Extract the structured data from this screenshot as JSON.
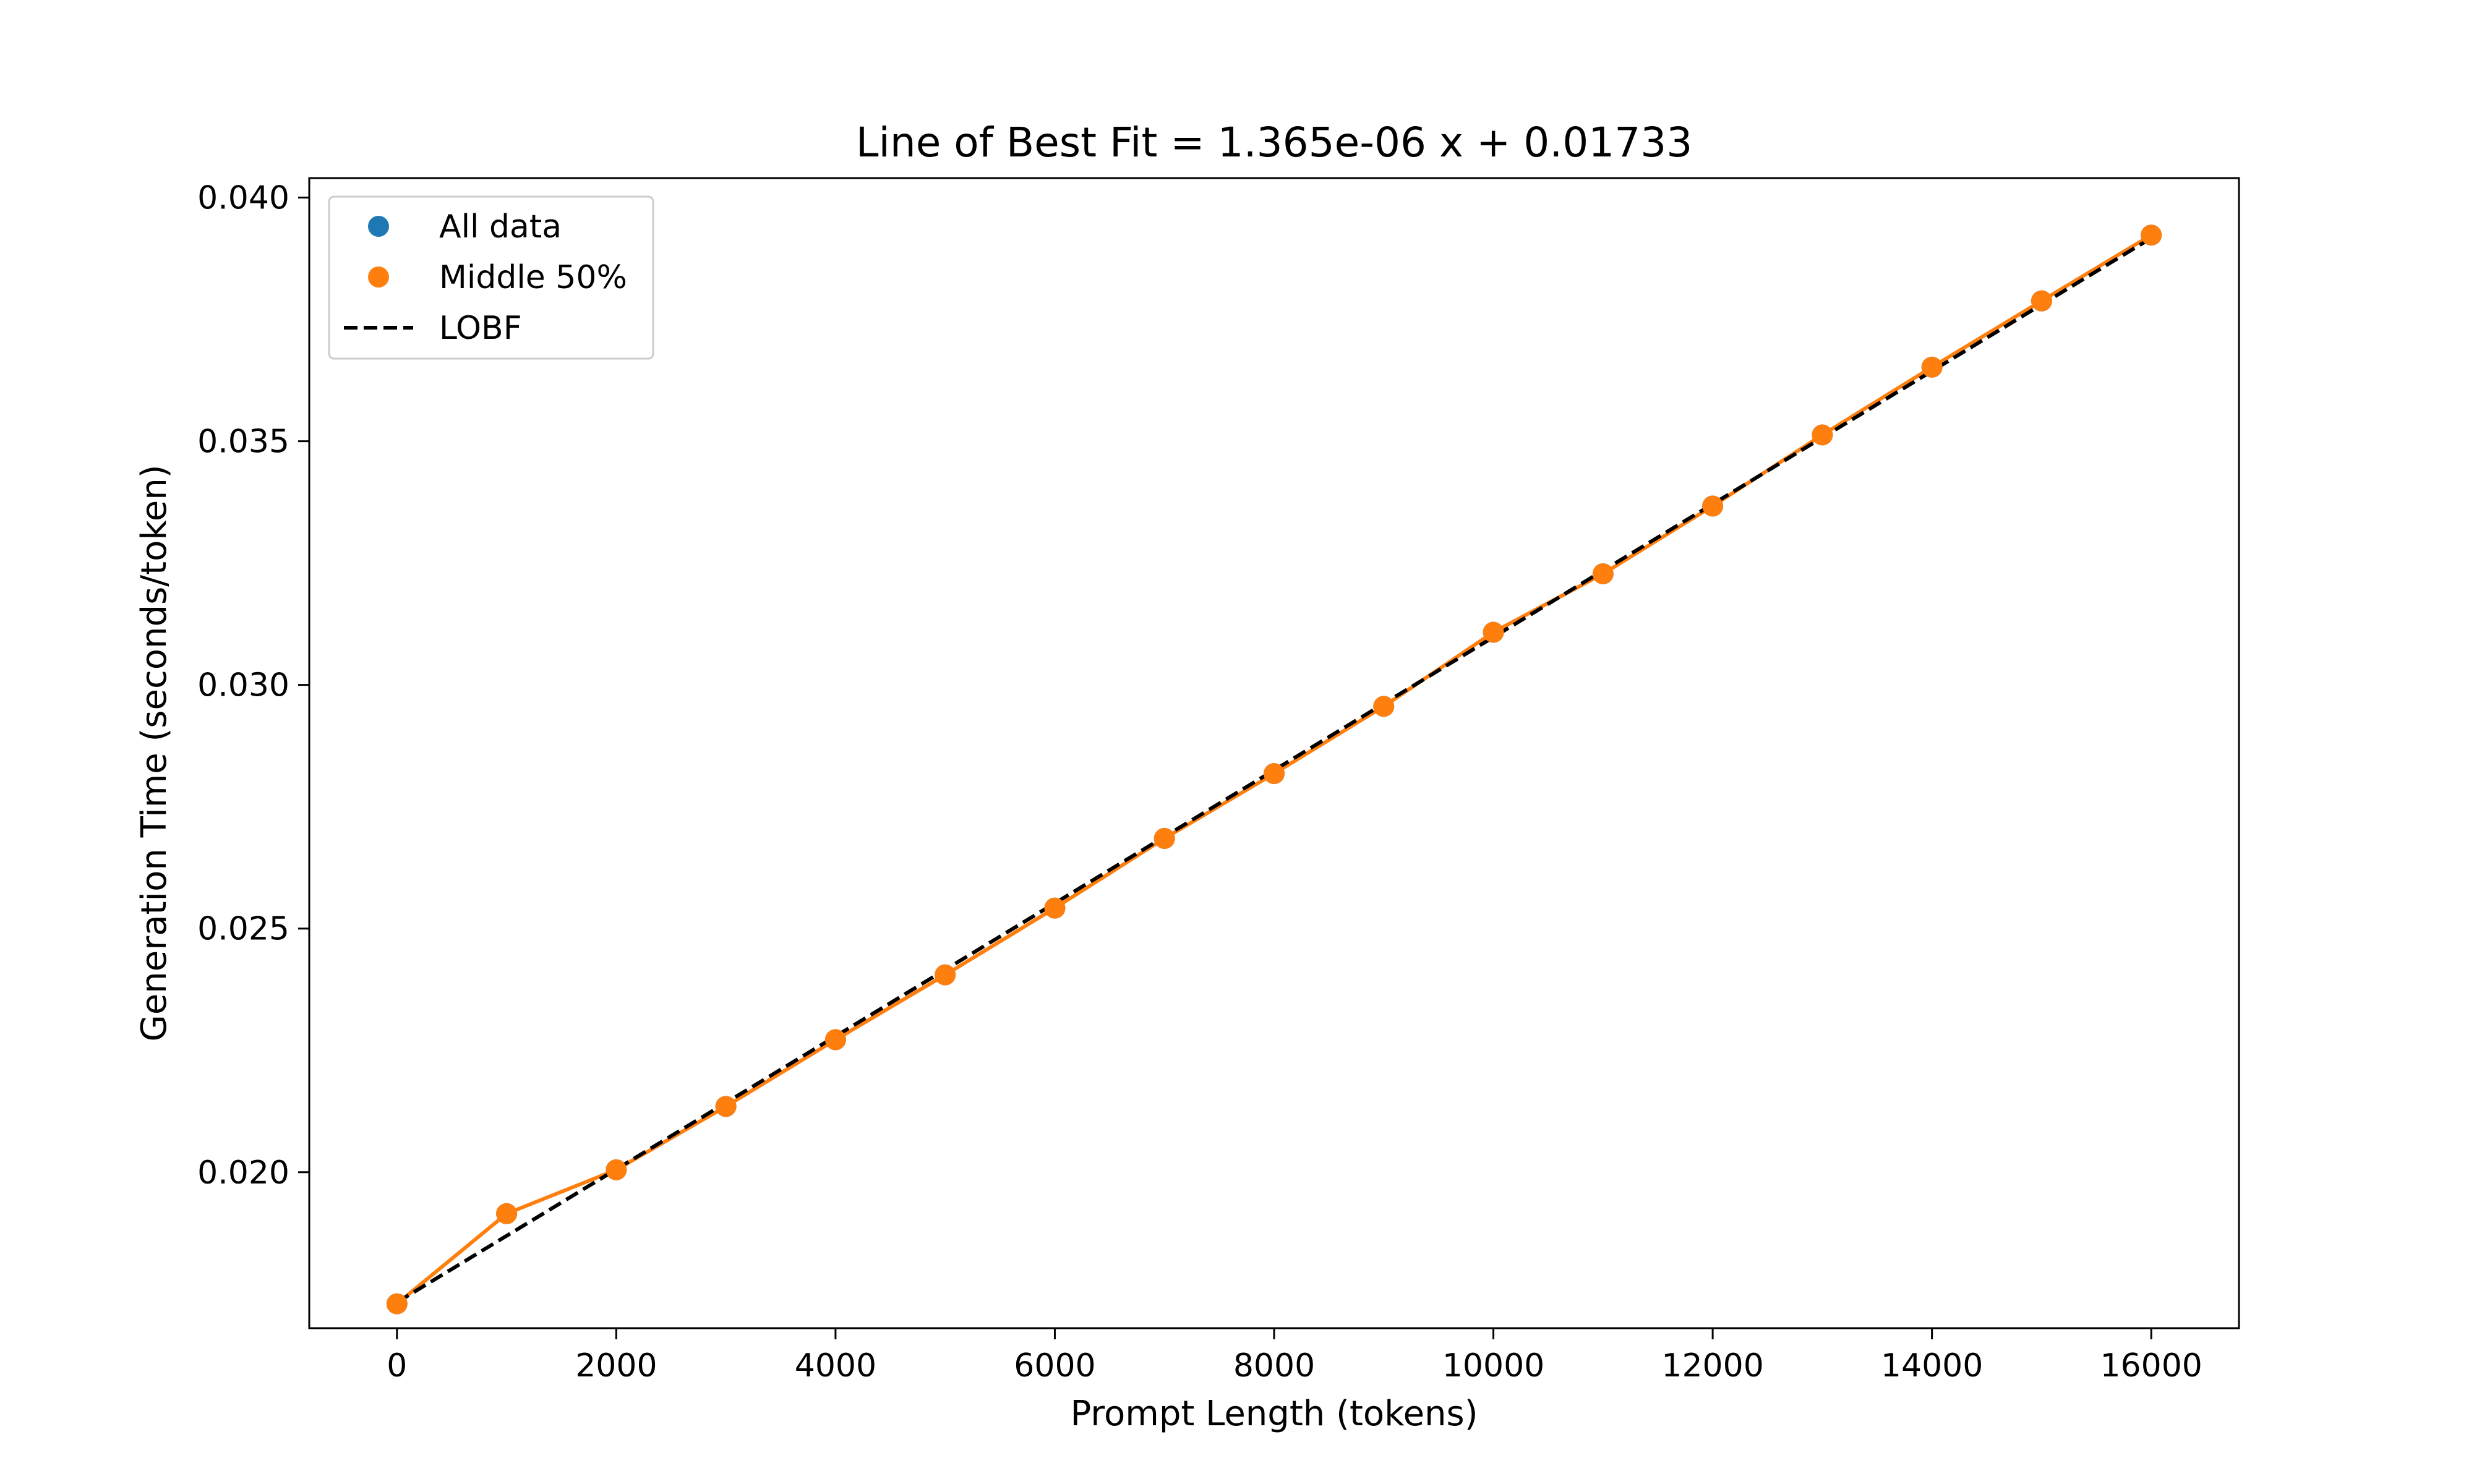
{
  "chart_data": {
    "type": "scatter",
    "title": "Line of Best Fit = 1.365e-06 x + 0.01733",
    "xlabel": "Prompt Length (tokens)",
    "ylabel": "Generation Time (seconds/token)",
    "xlim": [
      -800,
      16800
    ],
    "ylim": [
      0.0168,
      0.0404
    ],
    "xticks": [
      0,
      2000,
      4000,
      6000,
      8000,
      10000,
      12000,
      14000,
      16000
    ],
    "xtick_labels": [
      "0",
      "2000",
      "4000",
      "6000",
      "8000",
      "10000",
      "12000",
      "14000",
      "16000"
    ],
    "yticks": [
      0.02,
      0.025,
      0.03,
      0.035,
      0.04
    ],
    "ytick_labels": [
      "0.020",
      "0.025",
      "0.030",
      "0.035",
      "0.040"
    ],
    "grid": false,
    "legend_position": "top-left",
    "series": [
      {
        "name": "All data",
        "kind": "scatter",
        "color": "#1f77b4",
        "x": [
          0,
          1000,
          2000,
          3000,
          4000,
          5000,
          6000,
          7000,
          8000,
          9000,
          10000,
          11000,
          12000,
          13000,
          14000,
          15000,
          16000
        ],
        "y": [
          0.0173,
          0.01915,
          0.02005,
          0.02135,
          0.02272,
          0.02405,
          0.02542,
          0.02685,
          0.02818,
          0.02956,
          0.03108,
          0.03228,
          0.03367,
          0.03513,
          0.03652,
          0.03788,
          0.03923
        ]
      },
      {
        "name": "Middle 50%",
        "kind": "line+scatter",
        "color": "#ff7f0e",
        "x": [
          0,
          1000,
          2000,
          3000,
          4000,
          5000,
          6000,
          7000,
          8000,
          9000,
          10000,
          11000,
          12000,
          13000,
          14000,
          15000,
          16000
        ],
        "y": [
          0.0173,
          0.01915,
          0.02005,
          0.02135,
          0.02272,
          0.02405,
          0.02542,
          0.02685,
          0.02818,
          0.02956,
          0.03108,
          0.03228,
          0.03367,
          0.03513,
          0.03652,
          0.03788,
          0.03923
        ]
      },
      {
        "name": "LOBF",
        "kind": "dashed-line",
        "color": "#000000",
        "slope": 1.365e-06,
        "intercept": 0.01733,
        "x_range": [
          0,
          16000
        ]
      }
    ]
  }
}
